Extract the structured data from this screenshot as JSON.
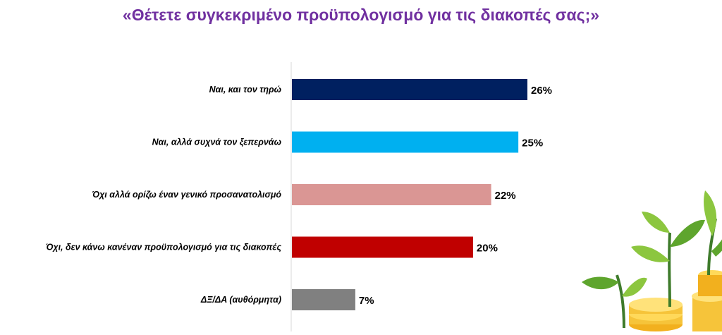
{
  "chart_data": {
    "type": "bar",
    "orientation": "horizontal",
    "title": "«Θέτετε συγκεκριμένο προϋπολογισμό για τις διακοπές σας;»",
    "categories": [
      "Ναι, και τον τηρώ",
      "Ναι, αλλά συχνά τον ξεπερνάω",
      "Όχι αλλά ορίζω έναν γενικό προσανατολισμό",
      "Όχι, δεν κάνω κανέναν προϋπολογισμό για τις διακοπές",
      "ΔΞ/ΔΑ (αυθόρμητα)"
    ],
    "values": [
      26,
      25,
      22,
      20,
      7
    ],
    "value_labels": [
      "26%",
      "25%",
      "22%",
      "20%",
      "7%"
    ],
    "colors": [
      "#002060",
      "#00b0f0",
      "#da9694",
      "#c00000",
      "#808080"
    ],
    "xlim": [
      0,
      26
    ],
    "grid": false,
    "legend": "none"
  }
}
